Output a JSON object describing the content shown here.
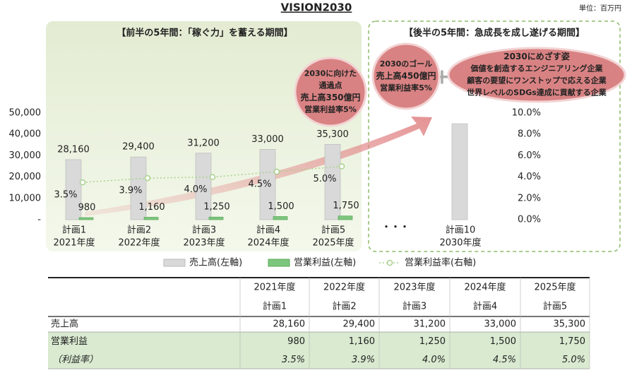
{
  "chart_data": {
    "type": "bar",
    "title": "VISION2030",
    "unit": "単位：百万円",
    "phase_labels": [
      "【前半の5年間：「稼ぐ力」を蓄える期間】",
      "【後半の5年間：急成長を成し遂げる期間】"
    ],
    "callouts": [
      [
        "2030に向けた",
        "通過点",
        "売上高350億円",
        "営業利益率5%"
      ],
      [
        "2030のゴール",
        "売上高450億円",
        "営業利益率5%"
      ],
      [
        "2030にめざす姿",
        "価値を創造するエンジニアリング企業",
        "顧客の要望にワンストップで応える企業",
        "世界レベルのSDGs達成に貢献する企業"
      ]
    ],
    "categories": [
      "計画1",
      "計画2",
      "計画3",
      "計画4",
      "計画5",
      "・・・",
      "計画10"
    ],
    "sub_categories": [
      "2021年度",
      "2022年度",
      "2023年度",
      "2024年度",
      "2025年度",
      null,
      "2030年度"
    ],
    "series": [
      {
        "name": "売上高(左軸)",
        "color": "#d9d9d9",
        "values": [
          28160,
          29400,
          31200,
          33000,
          35300,
          null,
          45000
        ],
        "value_labels": [
          "28,160",
          "29,400",
          "31,200",
          "33,000",
          "35,300",
          null,
          null
        ]
      },
      {
        "name": "営業利益(左軸)",
        "color": "#7dc67d",
        "values": [
          980,
          1160,
          1250,
          1500,
          1750,
          null,
          null
        ],
        "value_labels": [
          "980",
          "1,160",
          "1,250",
          "1,500",
          "1,750",
          null,
          null
        ]
      },
      {
        "name": "営業利益率(右軸)",
        "color": "#a9d18e",
        "axis": "y2",
        "type": "line",
        "values": [
          3.5,
          3.9,
          4.0,
          4.5,
          5.0,
          null,
          null
        ],
        "value_labels": [
          "3.5%",
          "3.9%",
          "4.0%",
          "4.5%",
          "5.0%",
          null,
          null
        ]
      }
    ],
    "ylim": [
      0,
      50000
    ],
    "yticks": [
      {
        "value": 0,
        "label": "-"
      },
      {
        "value": 10000,
        "label": "10,000"
      },
      {
        "value": 20000,
        "label": "20,000"
      },
      {
        "value": 30000,
        "label": "30,000"
      },
      {
        "value": 40000,
        "label": "40,000"
      },
      {
        "value": 50000,
        "label": "50,000"
      }
    ],
    "y2lim": [
      0,
      10
    ],
    "y2ticks": [
      {
        "value": 0,
        "label": "0.0%"
      },
      {
        "value": 2,
        "label": "2.0%"
      },
      {
        "value": 4,
        "label": "4.0%"
      },
      {
        "value": 6,
        "label": "6.0%"
      },
      {
        "value": 8,
        "label": "8.0%"
      },
      {
        "value": 10,
        "label": "10.0%"
      }
    ],
    "legend": "bottom"
  },
  "table": {
    "columns": [
      [
        "2021年度",
        "計画1"
      ],
      [
        "2022年度",
        "計画2"
      ],
      [
        "2023年度",
        "計画3"
      ],
      [
        "2024年度",
        "計画4"
      ],
      [
        "2025年度",
        "計画5"
      ]
    ],
    "rows": [
      {
        "label": "売上高",
        "cells": [
          "28,160",
          "29,400",
          "31,200",
          "33,000",
          "35,300"
        ]
      },
      {
        "label": "営業利益",
        "cells": [
          "980",
          "1,160",
          "1,250",
          "1,500",
          "1,750"
        ]
      },
      {
        "label": "（利益率）",
        "cells": [
          "3.5%",
          "3.9%",
          "4.0%",
          "4.5%",
          "5.0%"
        ]
      }
    ]
  }
}
